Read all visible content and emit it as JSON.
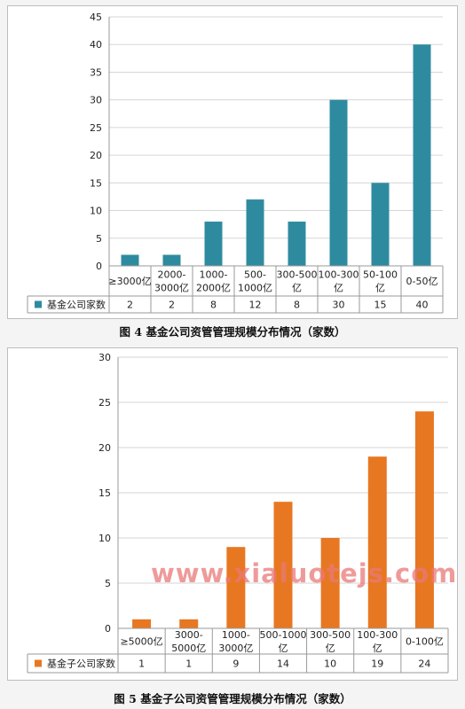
{
  "chart_data": [
    {
      "type": "bar",
      "categories": [
        "≥3000亿",
        "2000-3000亿",
        "1000-2000亿",
        "500-1000亿",
        "300-500亿",
        "100-300亿",
        "50-100亿",
        "0-50亿"
      ],
      "category_lines": [
        [
          "≥3000亿"
        ],
        [
          "2000-",
          "3000亿"
        ],
        [
          "1000-",
          "2000亿"
        ],
        [
          "500-",
          "1000亿"
        ],
        [
          "300-500",
          "亿"
        ],
        [
          "100-300",
          "亿"
        ],
        [
          "50-100",
          "亿"
        ],
        [
          "0-50亿"
        ]
      ],
      "series": [
        {
          "name": "基金公司家数",
          "values": [
            2,
            2,
            8,
            12,
            8,
            30,
            15,
            40
          ]
        }
      ],
      "ylim": [
        0,
        45
      ],
      "yticks": [
        0,
        5,
        10,
        15,
        20,
        25,
        30,
        35,
        40,
        45
      ],
      "data_table": true,
      "color": "#2e8b9f",
      "caption": "图 4  基金公司资管管理规模分布情况（家数）"
    },
    {
      "type": "bar",
      "categories": [
        "≥5000亿",
        "3000-5000亿",
        "1000-3000亿",
        "500-1000亿",
        "300-500亿",
        "100-300亿",
        "0-100亿"
      ],
      "category_lines": [
        [
          "≥5000亿"
        ],
        [
          "3000-",
          "5000亿"
        ],
        [
          "1000-",
          "3000亿"
        ],
        [
          "500-1000",
          "亿"
        ],
        [
          "300-500",
          "亿"
        ],
        [
          "100-300",
          "亿"
        ],
        [
          "0-100亿"
        ]
      ],
      "series": [
        {
          "name": "基金子公司家数",
          "values": [
            1,
            1,
            9,
            14,
            10,
            19,
            24
          ]
        }
      ],
      "ylim": [
        0,
        30
      ],
      "yticks": [
        0,
        5,
        10,
        15,
        20,
        25,
        30
      ],
      "data_table": true,
      "color": "#e87722",
      "caption": "图 5  基金子公司资管管理规模分布情况（家数）"
    }
  ],
  "watermark": "www.xialuotejs.com"
}
